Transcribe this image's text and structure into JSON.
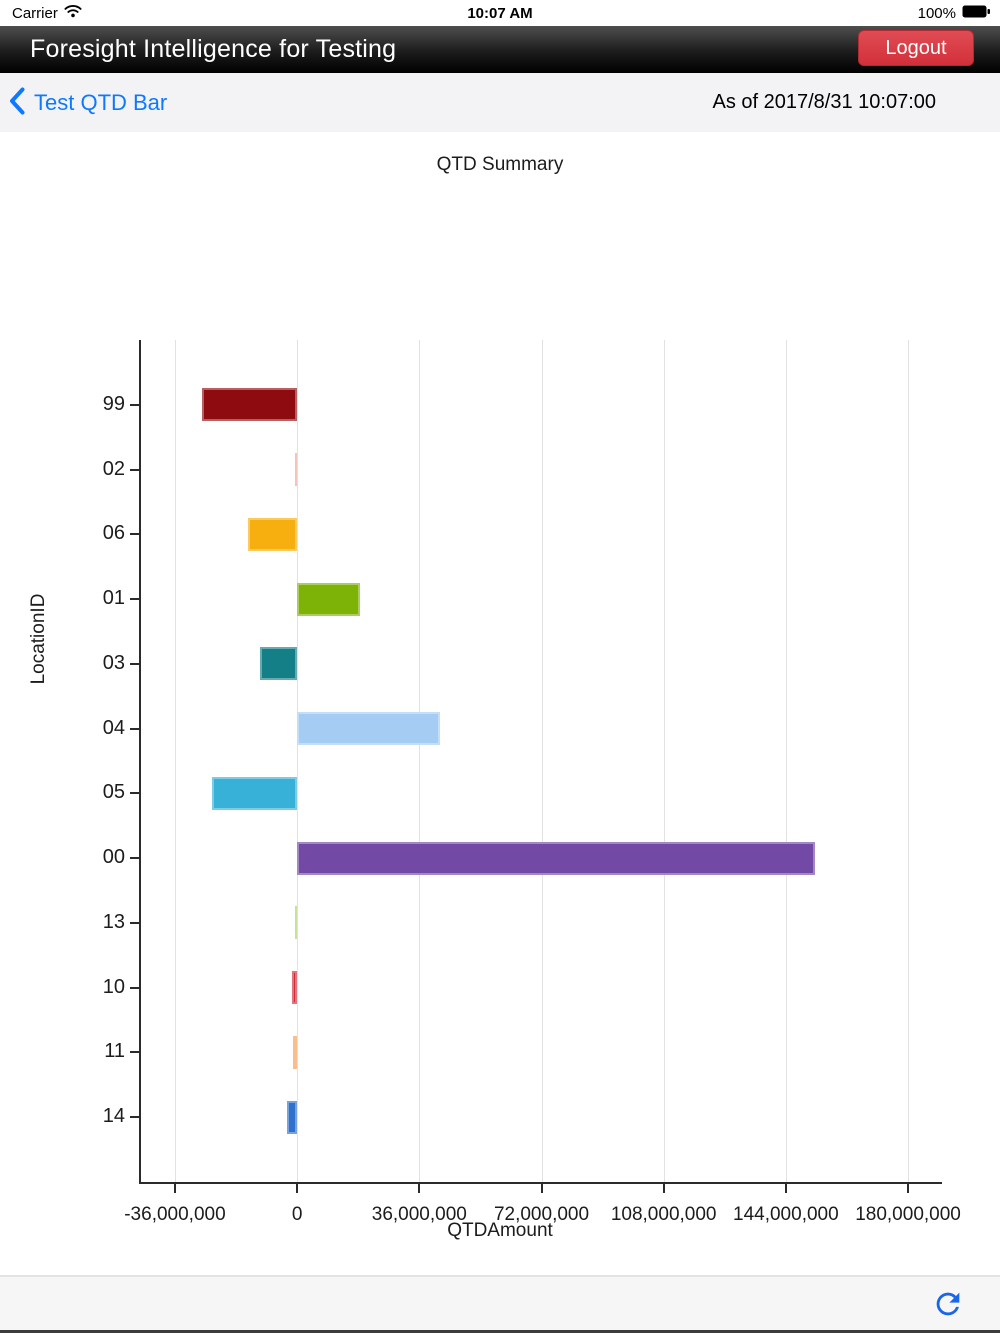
{
  "status_bar": {
    "carrier": "Carrier",
    "time": "10:07 AM",
    "battery_pct": "100%"
  },
  "header": {
    "title": "Foresight Intelligence for Testing",
    "logout_label": "Logout",
    "logout_color": "#d2303a"
  },
  "nav_bar": {
    "back_label": "Test QTD Bar",
    "as_of": "As of 2017/8/31 10:07:00",
    "accent": "#0f79fd"
  },
  "toolbar": {
    "refresh_icon": "refresh-icon",
    "accent": "#1a66e8"
  },
  "chart_data": {
    "type": "bar",
    "orientation": "horizontal",
    "title": "QTD Summary",
    "xlabel": "QTDAmount",
    "ylabel": "LocationID",
    "categories": [
      "99",
      "02",
      "06",
      "01",
      "03",
      "04",
      "05",
      "00",
      "13",
      "10",
      "11",
      "14"
    ],
    "values": [
      -28000000,
      -600000,
      -14500000,
      18500000,
      -11000000,
      42000000,
      -25000000,
      152500000,
      -500000,
      -1400000,
      -1100000,
      -2900000
    ],
    "colors": [
      "#8e0c10",
      "#f2a492",
      "#f7af10",
      "#7db207",
      "#157f87",
      "#a5cdf3",
      "#38b1d8",
      "#7249a5",
      "#a8d361",
      "#d02b38",
      "#f79c4d",
      "#3070cd"
    ],
    "xlim": [
      -46000000,
      190000000
    ],
    "xticks": [
      -36000000,
      0,
      36000000,
      72000000,
      108000000,
      144000000,
      180000000
    ],
    "xtick_labels": [
      "-36,000,000",
      "0",
      "36,000,000",
      "72,000,000",
      "108,000,000",
      "144,000,000",
      "180,000,000"
    ],
    "grid": true,
    "legend": "none",
    "axis_color": "#2b2b2b",
    "grid_color": "#e2e2e2"
  }
}
